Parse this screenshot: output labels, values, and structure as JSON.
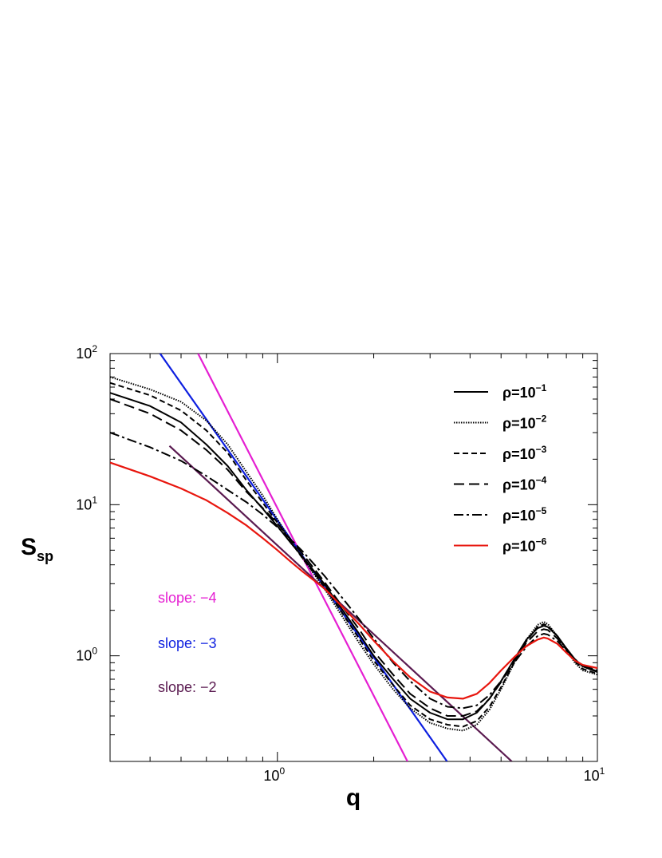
{
  "chart_data": {
    "type": "line",
    "title": "",
    "xlabel": "q",
    "ylabel": {
      "main": "S",
      "sub": "sp"
    },
    "xscale": "log",
    "yscale": "log",
    "xlim": [
      0.3,
      10
    ],
    "ylim": [
      0.2,
      100
    ],
    "grid": false,
    "legend_position": "top-right",
    "x_ticks": [
      {
        "value": 1,
        "base": "10",
        "exp": "0"
      },
      {
        "value": 10,
        "base": "10",
        "exp": "1"
      }
    ],
    "y_ticks": [
      {
        "value": 1,
        "base": "10",
        "exp": "0"
      },
      {
        "value": 10,
        "base": "10",
        "exp": "1"
      },
      {
        "value": 100,
        "base": "10",
        "exp": "2"
      }
    ],
    "series": [
      {
        "name": "ρ=10−1",
        "legend_prefix": "ρ=10",
        "legend_exp": "−1",
        "color": "#000000",
        "dash": "solid",
        "x": [
          0.3,
          0.4,
          0.5,
          0.6,
          0.7,
          0.8,
          0.9,
          1.0,
          1.1,
          1.2,
          1.4,
          1.6,
          1.8,
          2.0,
          2.3,
          2.6,
          3.0,
          3.4,
          3.8,
          4.2,
          4.6,
          5.0,
          5.5,
          6.0,
          6.5,
          6.8,
          7.0,
          7.5,
          8.0,
          8.5,
          9.0,
          10.0
        ],
        "y": [
          55,
          45,
          35,
          25,
          18,
          12.5,
          9.4,
          7.2,
          5.6,
          4.5,
          3.0,
          2.0,
          1.4,
          1.0,
          0.7,
          0.52,
          0.42,
          0.38,
          0.38,
          0.42,
          0.52,
          0.68,
          0.95,
          1.28,
          1.52,
          1.58,
          1.55,
          1.35,
          1.12,
          0.95,
          0.85,
          0.78
        ]
      },
      {
        "name": "ρ=10−2",
        "legend_prefix": "ρ=10",
        "legend_exp": "−2",
        "color": "#000000",
        "dash": "dotted",
        "x": [
          0.3,
          0.4,
          0.5,
          0.6,
          0.7,
          0.8,
          0.9,
          1.0,
          1.1,
          1.2,
          1.4,
          1.6,
          1.8,
          2.0,
          2.3,
          2.6,
          3.0,
          3.4,
          3.8,
          4.2,
          4.6,
          5.0,
          5.5,
          6.0,
          6.5,
          6.8,
          7.0,
          7.5,
          8.0,
          8.5,
          9.0,
          10.0
        ],
        "y": [
          70,
          58,
          48,
          36,
          25,
          16.5,
          11.5,
          8.0,
          5.8,
          4.4,
          2.8,
          1.8,
          1.22,
          0.88,
          0.6,
          0.45,
          0.36,
          0.33,
          0.32,
          0.35,
          0.44,
          0.6,
          0.9,
          1.28,
          1.6,
          1.68,
          1.62,
          1.35,
          1.1,
          0.9,
          0.8,
          0.75
        ]
      },
      {
        "name": "ρ=10−3",
        "legend_prefix": "ρ=10",
        "legend_exp": "−3",
        "color": "#000000",
        "dash": "dashed",
        "x": [
          0.3,
          0.4,
          0.5,
          0.6,
          0.7,
          0.8,
          0.9,
          1.0,
          1.1,
          1.2,
          1.4,
          1.6,
          1.8,
          2.0,
          2.3,
          2.6,
          3.0,
          3.4,
          3.8,
          4.2,
          4.6,
          5.0,
          5.5,
          6.0,
          6.5,
          6.8,
          7.0,
          7.5,
          8.0,
          8.5,
          9.0,
          10.0
        ],
        "y": [
          64,
          53,
          42,
          31,
          22,
          14.5,
          10.3,
          7.6,
          5.7,
          4.4,
          2.9,
          1.9,
          1.3,
          0.93,
          0.64,
          0.47,
          0.38,
          0.35,
          0.34,
          0.37,
          0.46,
          0.62,
          0.9,
          1.25,
          1.55,
          1.62,
          1.58,
          1.35,
          1.1,
          0.92,
          0.82,
          0.76
        ]
      },
      {
        "name": "ρ=10−4",
        "legend_prefix": "ρ=10",
        "legend_exp": "−4",
        "color": "#000000",
        "dash": "longdash",
        "x": [
          0.3,
          0.4,
          0.5,
          0.6,
          0.7,
          0.8,
          0.9,
          1.0,
          1.1,
          1.2,
          1.4,
          1.6,
          1.8,
          2.0,
          2.3,
          2.6,
          3.0,
          3.4,
          3.8,
          4.2,
          4.6,
          5.0,
          5.5,
          6.0,
          6.5,
          6.8,
          7.0,
          7.5,
          8.0,
          8.5,
          9.0,
          10.0
        ],
        "y": [
          50,
          40,
          31,
          23,
          17,
          12.2,
          9.5,
          7.5,
          5.9,
          4.7,
          3.1,
          2.1,
          1.5,
          1.07,
          0.75,
          0.56,
          0.45,
          0.4,
          0.4,
          0.43,
          0.52,
          0.67,
          0.92,
          1.22,
          1.45,
          1.5,
          1.48,
          1.3,
          1.1,
          0.95,
          0.85,
          0.79
        ]
      },
      {
        "name": "ρ=10−5",
        "legend_prefix": "ρ=10",
        "legend_exp": "−5",
        "color": "#000000",
        "dash": "dashdot",
        "x": [
          0.3,
          0.4,
          0.5,
          0.6,
          0.7,
          0.8,
          0.9,
          1.0,
          1.1,
          1.2,
          1.4,
          1.6,
          1.8,
          2.0,
          2.3,
          2.6,
          3.0,
          3.4,
          3.8,
          4.2,
          4.6,
          5.0,
          5.5,
          6.0,
          6.5,
          6.8,
          7.0,
          7.5,
          8.0,
          8.5,
          9.0,
          10.0
        ],
        "y": [
          30,
          24,
          19.5,
          15.5,
          12.5,
          10.4,
          8.6,
          7.1,
          5.9,
          4.9,
          3.4,
          2.4,
          1.75,
          1.3,
          0.9,
          0.68,
          0.52,
          0.46,
          0.45,
          0.47,
          0.55,
          0.68,
          0.9,
          1.15,
          1.35,
          1.4,
          1.38,
          1.25,
          1.08,
          0.95,
          0.86,
          0.8
        ]
      },
      {
        "name": "ρ=10−6",
        "legend_prefix": "ρ=10",
        "legend_exp": "−6",
        "color": "#e8160e",
        "dash": "solid",
        "x": [
          0.3,
          0.4,
          0.5,
          0.6,
          0.7,
          0.8,
          0.9,
          1.0,
          1.1,
          1.2,
          1.4,
          1.6,
          1.8,
          2.0,
          2.3,
          2.6,
          3.0,
          3.4,
          3.8,
          4.2,
          4.6,
          5.0,
          5.5,
          6.0,
          6.5,
          6.8,
          7.0,
          7.5,
          8.0,
          8.5,
          9.0,
          10.0
        ],
        "y": [
          19,
          15.4,
          12.8,
          10.7,
          8.8,
          7.3,
          6.0,
          5.0,
          4.2,
          3.6,
          2.8,
          2.1,
          1.62,
          1.26,
          0.92,
          0.72,
          0.58,
          0.53,
          0.52,
          0.56,
          0.66,
          0.8,
          0.98,
          1.16,
          1.28,
          1.32,
          1.3,
          1.2,
          1.05,
          0.93,
          0.87,
          0.83
        ]
      }
    ],
    "reference_lines": [
      {
        "name": "slope: −4",
        "label": "slope: −4",
        "slope": -4,
        "color": "#e51fd2",
        "x": [
          0.565,
          2.55
        ],
        "y": [
          100,
          0.2
        ]
      },
      {
        "name": "slope: −3",
        "label": "slope: −3",
        "slope": -3,
        "color": "#0d1fe0",
        "x": [
          0.43,
          3.39
        ],
        "y": [
          100,
          0.2
        ]
      },
      {
        "name": "slope: −2",
        "label": "slope: −2",
        "slope": -2,
        "color": "#5a1a50",
        "x": [
          0.46,
          5.4
        ],
        "y": [
          24.5,
          0.2
        ]
      }
    ]
  }
}
